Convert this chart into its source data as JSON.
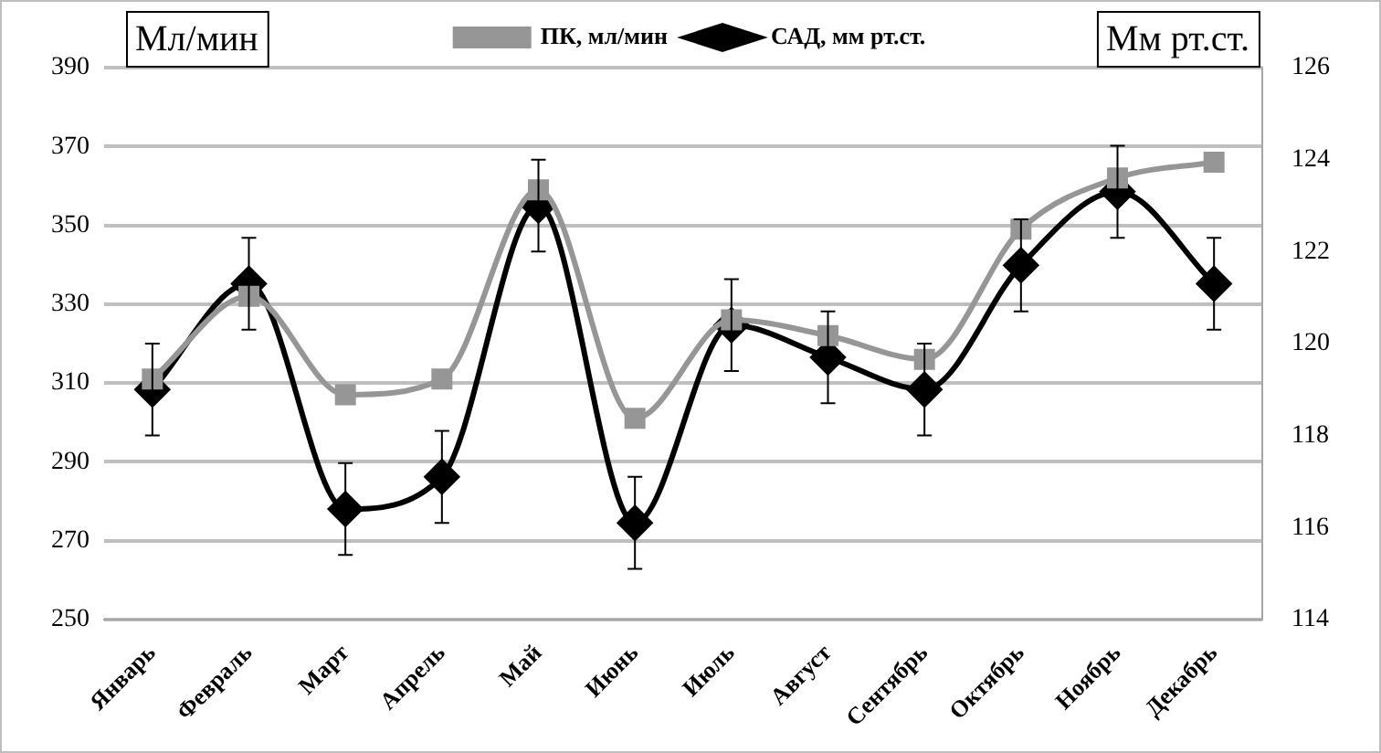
{
  "chart_data": {
    "type": "line",
    "ylabel": "Мл/мин",
    "y2label": "Мм рт.ст.",
    "categories": [
      "Январь",
      "Февраль",
      "Март",
      "Апрель",
      "Май",
      "Июнь",
      "Июль",
      "Август",
      "Сентябрь",
      "Октябрь",
      "Ноябрь",
      "Декабрь"
    ],
    "series": [
      {
        "name": "ПК, мл/мин",
        "color": "#969696",
        "marker": "square",
        "values": [
          311,
          332,
          307,
          311,
          359,
          301,
          326,
          322,
          316,
          349,
          362,
          366
        ]
      },
      {
        "name": "САД, мм рт.ст.",
        "color": "#000000",
        "marker": "diamond",
        "axis": "y2",
        "values": [
          119.0,
          121.3,
          116.4,
          117.1,
          123.0,
          116.1,
          120.4,
          119.7,
          119.0,
          121.7,
          123.3,
          121.3
        ],
        "errors": [
          1,
          1,
          1,
          1,
          1,
          1,
          1,
          1,
          1,
          1,
          1,
          1
        ]
      }
    ],
    "ylim": [
      250,
      390
    ],
    "yticks": [
      250,
      270,
      290,
      310,
      330,
      350,
      370,
      390
    ],
    "y2lim": [
      114,
      126
    ],
    "y2ticks": [
      114,
      116,
      118,
      120,
      122,
      124,
      126
    ],
    "grid": "y",
    "legend": "top"
  }
}
